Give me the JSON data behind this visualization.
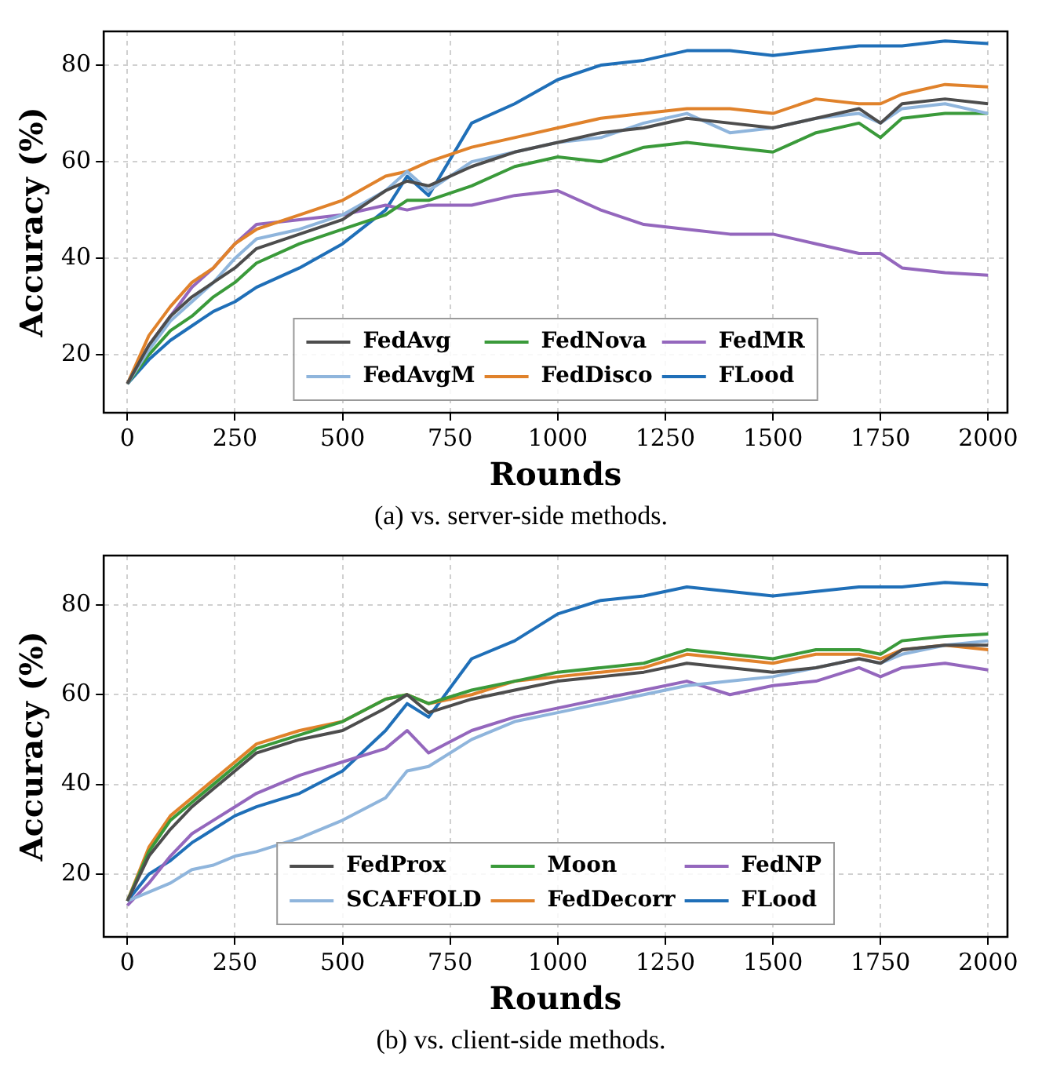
{
  "chart_data": [
    {
      "type": "line",
      "xlabel": "Rounds",
      "ylabel": "Accuracy (%)",
      "annotations": [
        "(a) vs. server-side methods."
      ],
      "xlim": [
        -55,
        2045
      ],
      "xticks": [
        0,
        250,
        500,
        750,
        1000,
        1250,
        1500,
        1750,
        2000
      ],
      "ylim": [
        8,
        87
      ],
      "yticks": [
        20,
        40,
        60,
        80
      ],
      "grid": true,
      "legend": "bottom",
      "marker": "none",
      "line_style": "solid",
      "x": [
        0,
        50,
        100,
        150,
        200,
        250,
        300,
        400,
        500,
        600,
        650,
        700,
        800,
        900,
        1000,
        1100,
        1200,
        1300,
        1400,
        1500,
        1600,
        1700,
        1750,
        1800,
        1900,
        2000
      ],
      "series": [
        {
          "name": "FedAvg",
          "color": "#4d4d4d",
          "values": [
            14,
            22,
            28,
            32,
            35,
            38,
            42,
            45,
            48,
            54,
            56,
            55,
            59,
            62,
            64,
            66,
            67,
            69,
            68,
            67,
            69,
            71,
            68,
            72,
            73,
            72
          ]
        },
        {
          "name": "FedAvgM",
          "color": "#8fb5dc",
          "values": [
            14,
            21,
            27,
            31,
            35,
            40,
            44,
            46,
            49,
            54,
            58,
            54,
            60,
            62,
            64,
            65,
            68,
            70,
            66,
            67,
            69,
            70,
            68,
            71,
            72,
            70
          ]
        },
        {
          "name": "FedNova",
          "color": "#3a9a3a",
          "values": [
            14,
            20,
            25,
            28,
            32,
            35,
            39,
            43,
            46,
            49,
            52,
            52,
            55,
            59,
            61,
            60,
            63,
            64,
            63,
            62,
            66,
            68,
            65,
            69,
            70,
            70
          ]
        },
        {
          "name": "FedDisco",
          "color": "#e0822b",
          "values": [
            14,
            24,
            30,
            35,
            38,
            43,
            46,
            49,
            52,
            57,
            58,
            60,
            63,
            65,
            67,
            69,
            70,
            71,
            71,
            70,
            73,
            72,
            72,
            74,
            76,
            75.5
          ]
        },
        {
          "name": "FedMR",
          "color": "#9467bd",
          "values": [
            14,
            22,
            28,
            34,
            38,
            43,
            47,
            48,
            49,
            51,
            50,
            51,
            51,
            53,
            54,
            50,
            47,
            46,
            45,
            45,
            43,
            41,
            41,
            38,
            37,
            36.5
          ]
        },
        {
          "name": "FLood",
          "color": "#1f6fb8",
          "values": [
            14,
            19,
            23,
            26,
            29,
            31,
            34,
            38,
            43,
            50,
            57,
            53,
            68,
            72,
            77,
            80,
            81,
            83,
            83,
            82,
            83,
            84,
            84,
            84,
            85,
            84.5
          ]
        }
      ]
    },
    {
      "type": "line",
      "xlabel": "Rounds",
      "ylabel": "Accuracy (%)",
      "annotations": [
        "(b) vs. client-side methods."
      ],
      "xlim": [
        -55,
        2045
      ],
      "xticks": [
        0,
        250,
        500,
        750,
        1000,
        1250,
        1500,
        1750,
        2000
      ],
      "ylim": [
        6,
        91
      ],
      "yticks": [
        20,
        40,
        60,
        80
      ],
      "grid": true,
      "legend": "bottom",
      "marker": "none",
      "line_style": "solid",
      "x": [
        0,
        50,
        100,
        150,
        200,
        250,
        300,
        400,
        500,
        600,
        650,
        700,
        800,
        900,
        1000,
        1100,
        1200,
        1300,
        1400,
        1500,
        1600,
        1700,
        1750,
        1800,
        1900,
        2000
      ],
      "series": [
        {
          "name": "FedProx",
          "color": "#4d4d4d",
          "values": [
            14,
            24,
            30,
            35,
            39,
            43,
            47,
            50,
            52,
            57,
            60,
            56,
            59,
            61,
            63,
            64,
            65,
            67,
            66,
            65,
            66,
            68,
            67,
            70,
            71,
            71
          ]
        },
        {
          "name": "SCAFFOLD",
          "color": "#8fb5dc",
          "values": [
            14,
            16,
            18,
            21,
            22,
            24,
            25,
            28,
            32,
            37,
            43,
            44,
            50,
            54,
            56,
            58,
            60,
            62,
            63,
            64,
            66,
            68,
            67,
            69,
            71,
            72
          ]
        },
        {
          "name": "Moon",
          "color": "#3a9a3a",
          "values": [
            14,
            25,
            32,
            36,
            40,
            44,
            48,
            51,
            54,
            59,
            60,
            58,
            61,
            63,
            65,
            66,
            67,
            70,
            69,
            68,
            70,
            70,
            69,
            72,
            73,
            73.5
          ]
        },
        {
          "name": "FedDecorr",
          "color": "#e0822b",
          "values": [
            14,
            26,
            33,
            37,
            41,
            45,
            49,
            52,
            54,
            59,
            60,
            58,
            60,
            63,
            64,
            65,
            66,
            69,
            68,
            67,
            69,
            69,
            68,
            70,
            71,
            70
          ]
        },
        {
          "name": "FedNP",
          "color": "#9467bd",
          "values": [
            13,
            18,
            24,
            29,
            32,
            35,
            38,
            42,
            45,
            48,
            52,
            47,
            52,
            55,
            57,
            59,
            61,
            63,
            60,
            62,
            63,
            66,
            64,
            66,
            67,
            65.5
          ]
        },
        {
          "name": "FLood",
          "color": "#1f6fb8",
          "values": [
            14,
            20,
            23,
            27,
            30,
            33,
            35,
            38,
            43,
            52,
            58,
            55,
            68,
            72,
            78,
            81,
            82,
            84,
            83,
            82,
            83,
            84,
            84,
            84,
            85,
            84.5
          ]
        }
      ]
    }
  ]
}
